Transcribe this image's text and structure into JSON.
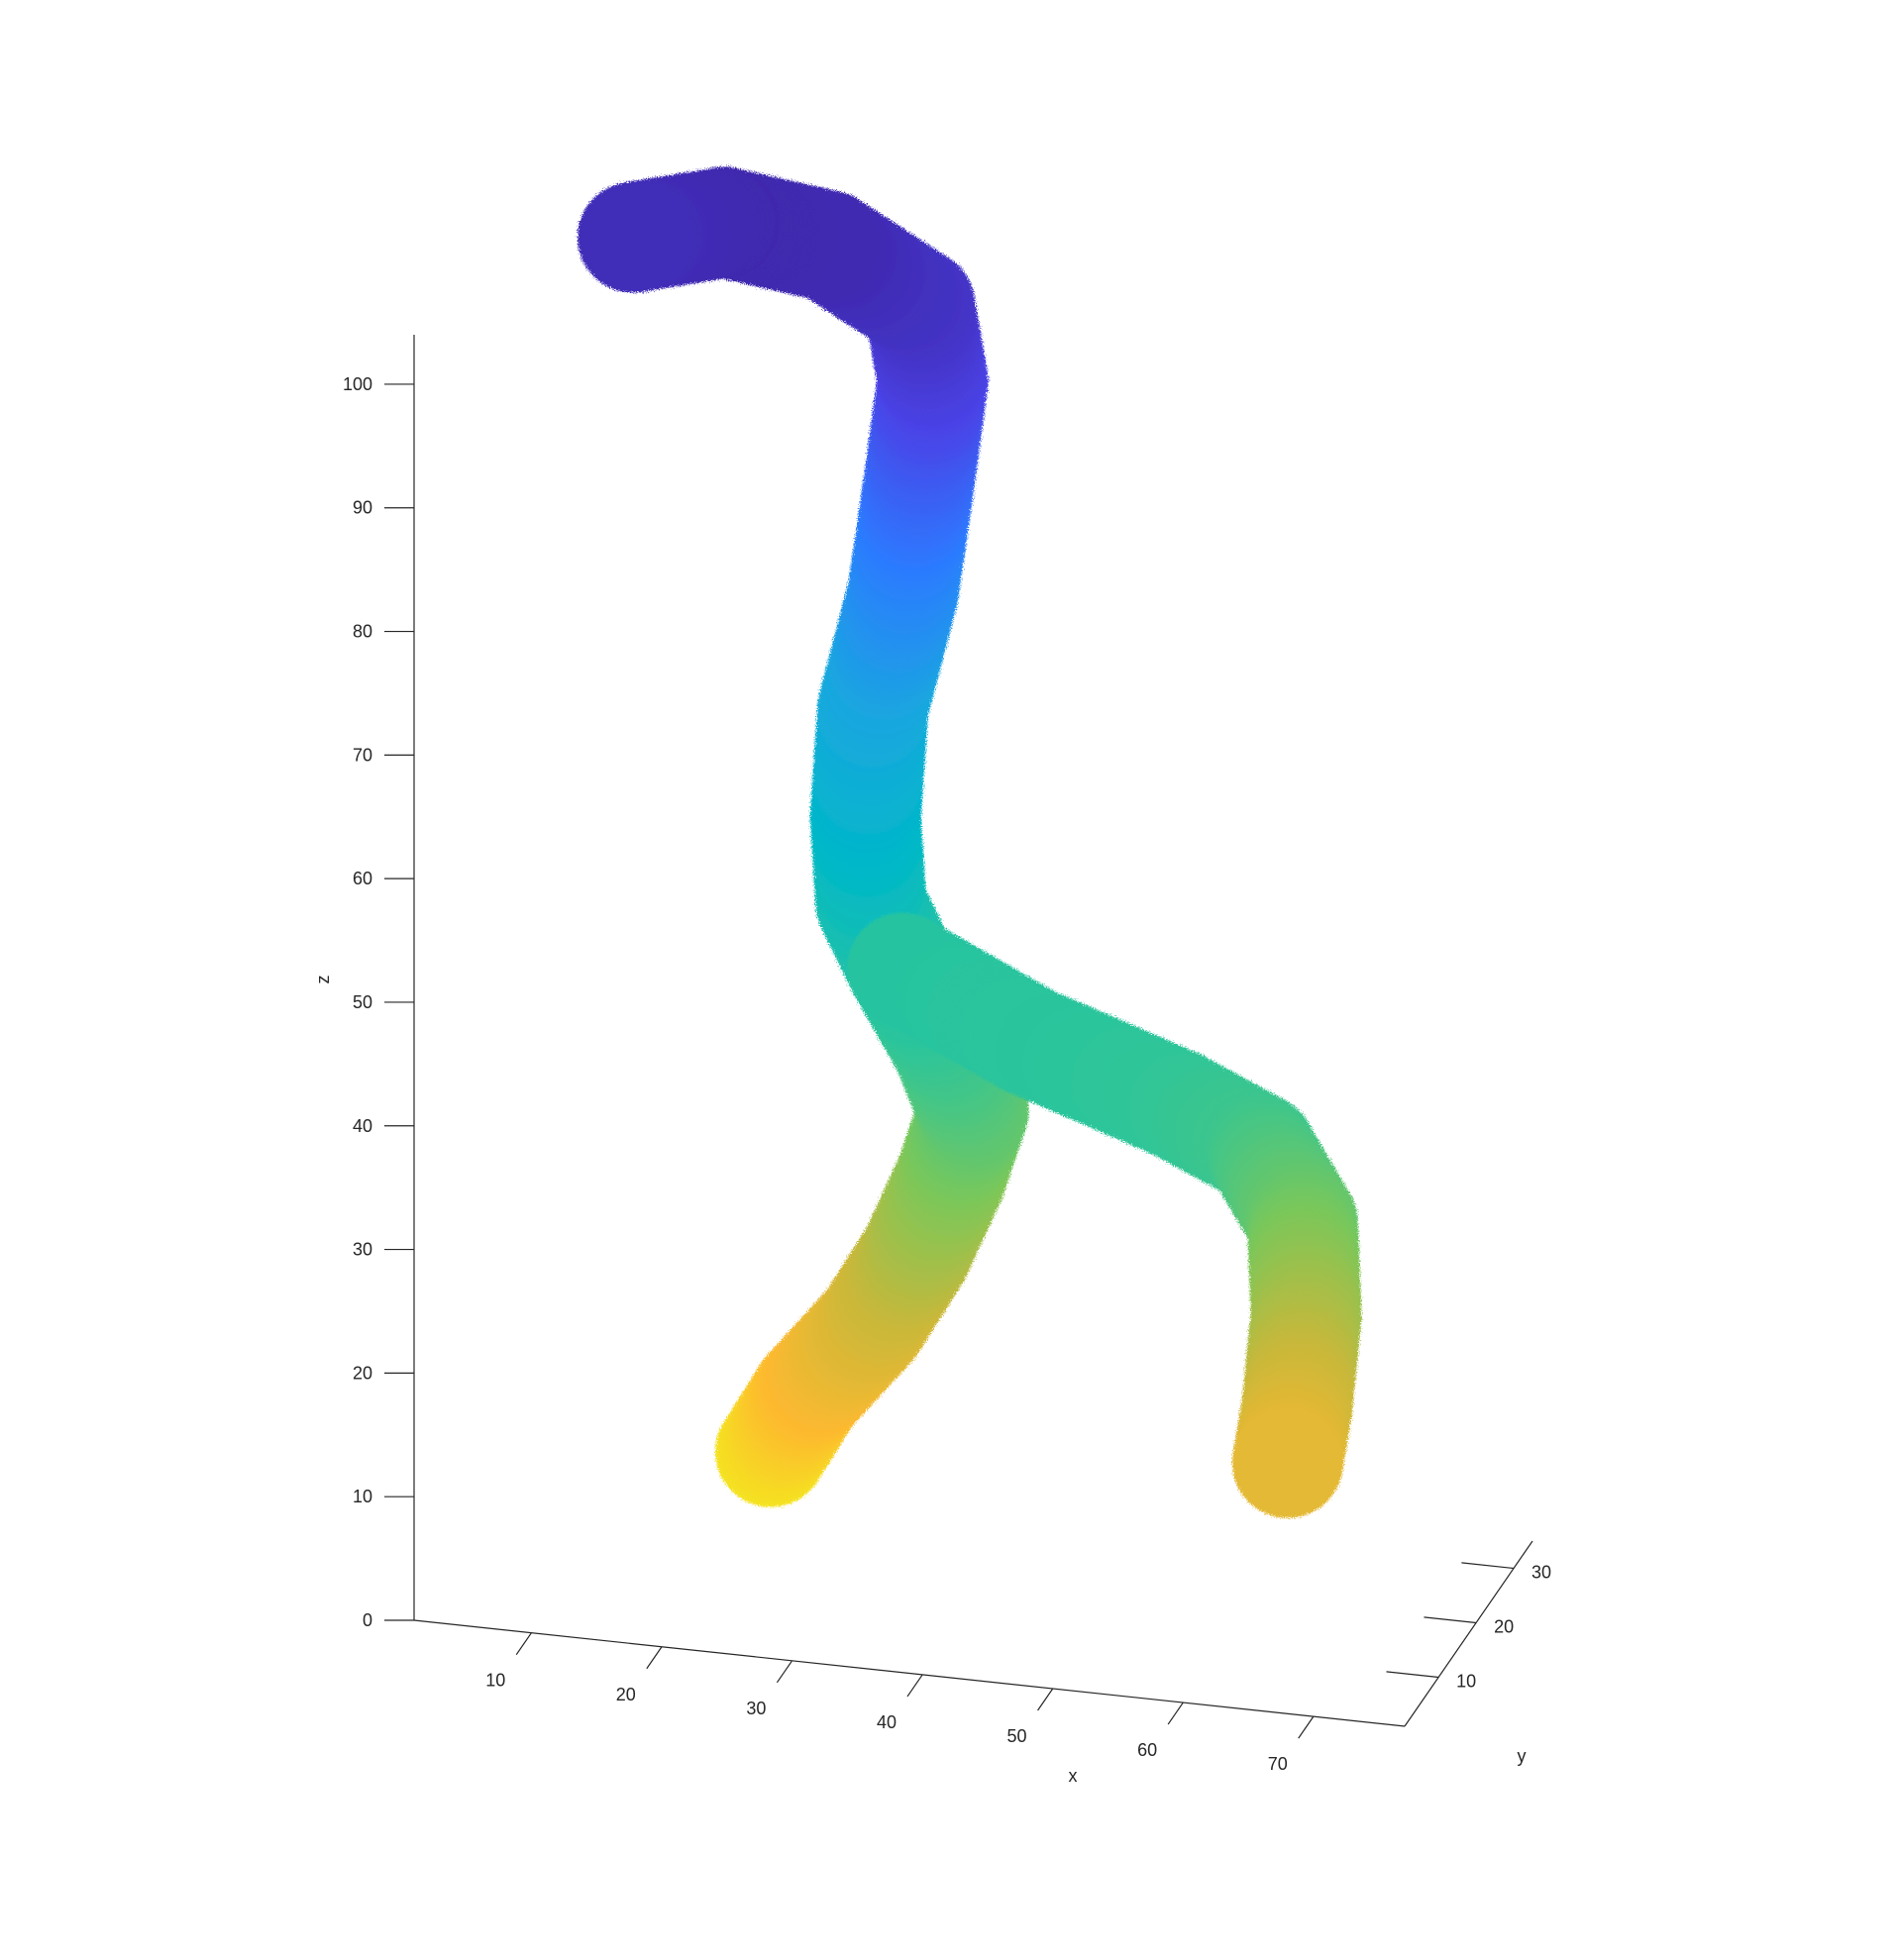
{
  "chart_data": {
    "type": "scatter",
    "title": "",
    "xlabel": "x",
    "ylabel": "y",
    "zlabel": "z",
    "xticks": [
      10,
      20,
      30,
      40,
      50,
      60,
      70
    ],
    "yticks": [
      10,
      20,
      30
    ],
    "zticks": [
      0,
      10,
      20,
      30,
      40,
      50,
      60,
      70,
      80,
      90,
      100
    ],
    "xlim": [
      1,
      77
    ],
    "ylim": [
      1,
      35
    ],
    "zlim": [
      0,
      104
    ],
    "grid": false,
    "legend": "none",
    "colormap": "parula",
    "color_by": "z",
    "colors": [
      "#3e26a8",
      "#4a42e6",
      "#2c7bff",
      "#1aa6e0",
      "#00b8c8",
      "#2dc59a",
      "#7ac75a",
      "#c8b83a",
      "#fdb92f",
      "#f2f01c"
    ],
    "series": [
      {
        "points": [
          [
            20,
            30,
            3
          ],
          [
            24,
            26,
            10
          ],
          [
            30,
            22,
            18
          ],
          [
            34,
            20,
            25
          ],
          [
            37,
            19,
            32
          ],
          [
            39,
            18,
            38
          ],
          [
            37,
            18,
            43
          ],
          [
            33,
            20,
            48
          ],
          [
            30,
            22,
            52
          ],
          [
            29,
            24,
            58
          ],
          [
            29,
            26,
            66
          ],
          [
            31,
            27,
            75
          ],
          [
            32,
            28,
            84
          ],
          [
            33,
            28,
            92
          ],
          [
            32,
            28,
            98
          ],
          [
            25,
            28,
            102
          ],
          [
            17,
            28,
            103
          ],
          [
            10,
            28,
            101
          ]
        ]
      },
      {
        "points": [
          [
            33,
            20,
            48
          ],
          [
            45,
            12,
            47
          ],
          [
            58,
            6,
            46
          ],
          [
            65,
            4,
            44
          ],
          [
            68,
            5,
            38
          ],
          [
            68,
            6,
            30
          ],
          [
            67,
            7,
            22
          ],
          [
            66,
            8,
            17
          ]
        ]
      }
    ]
  }
}
